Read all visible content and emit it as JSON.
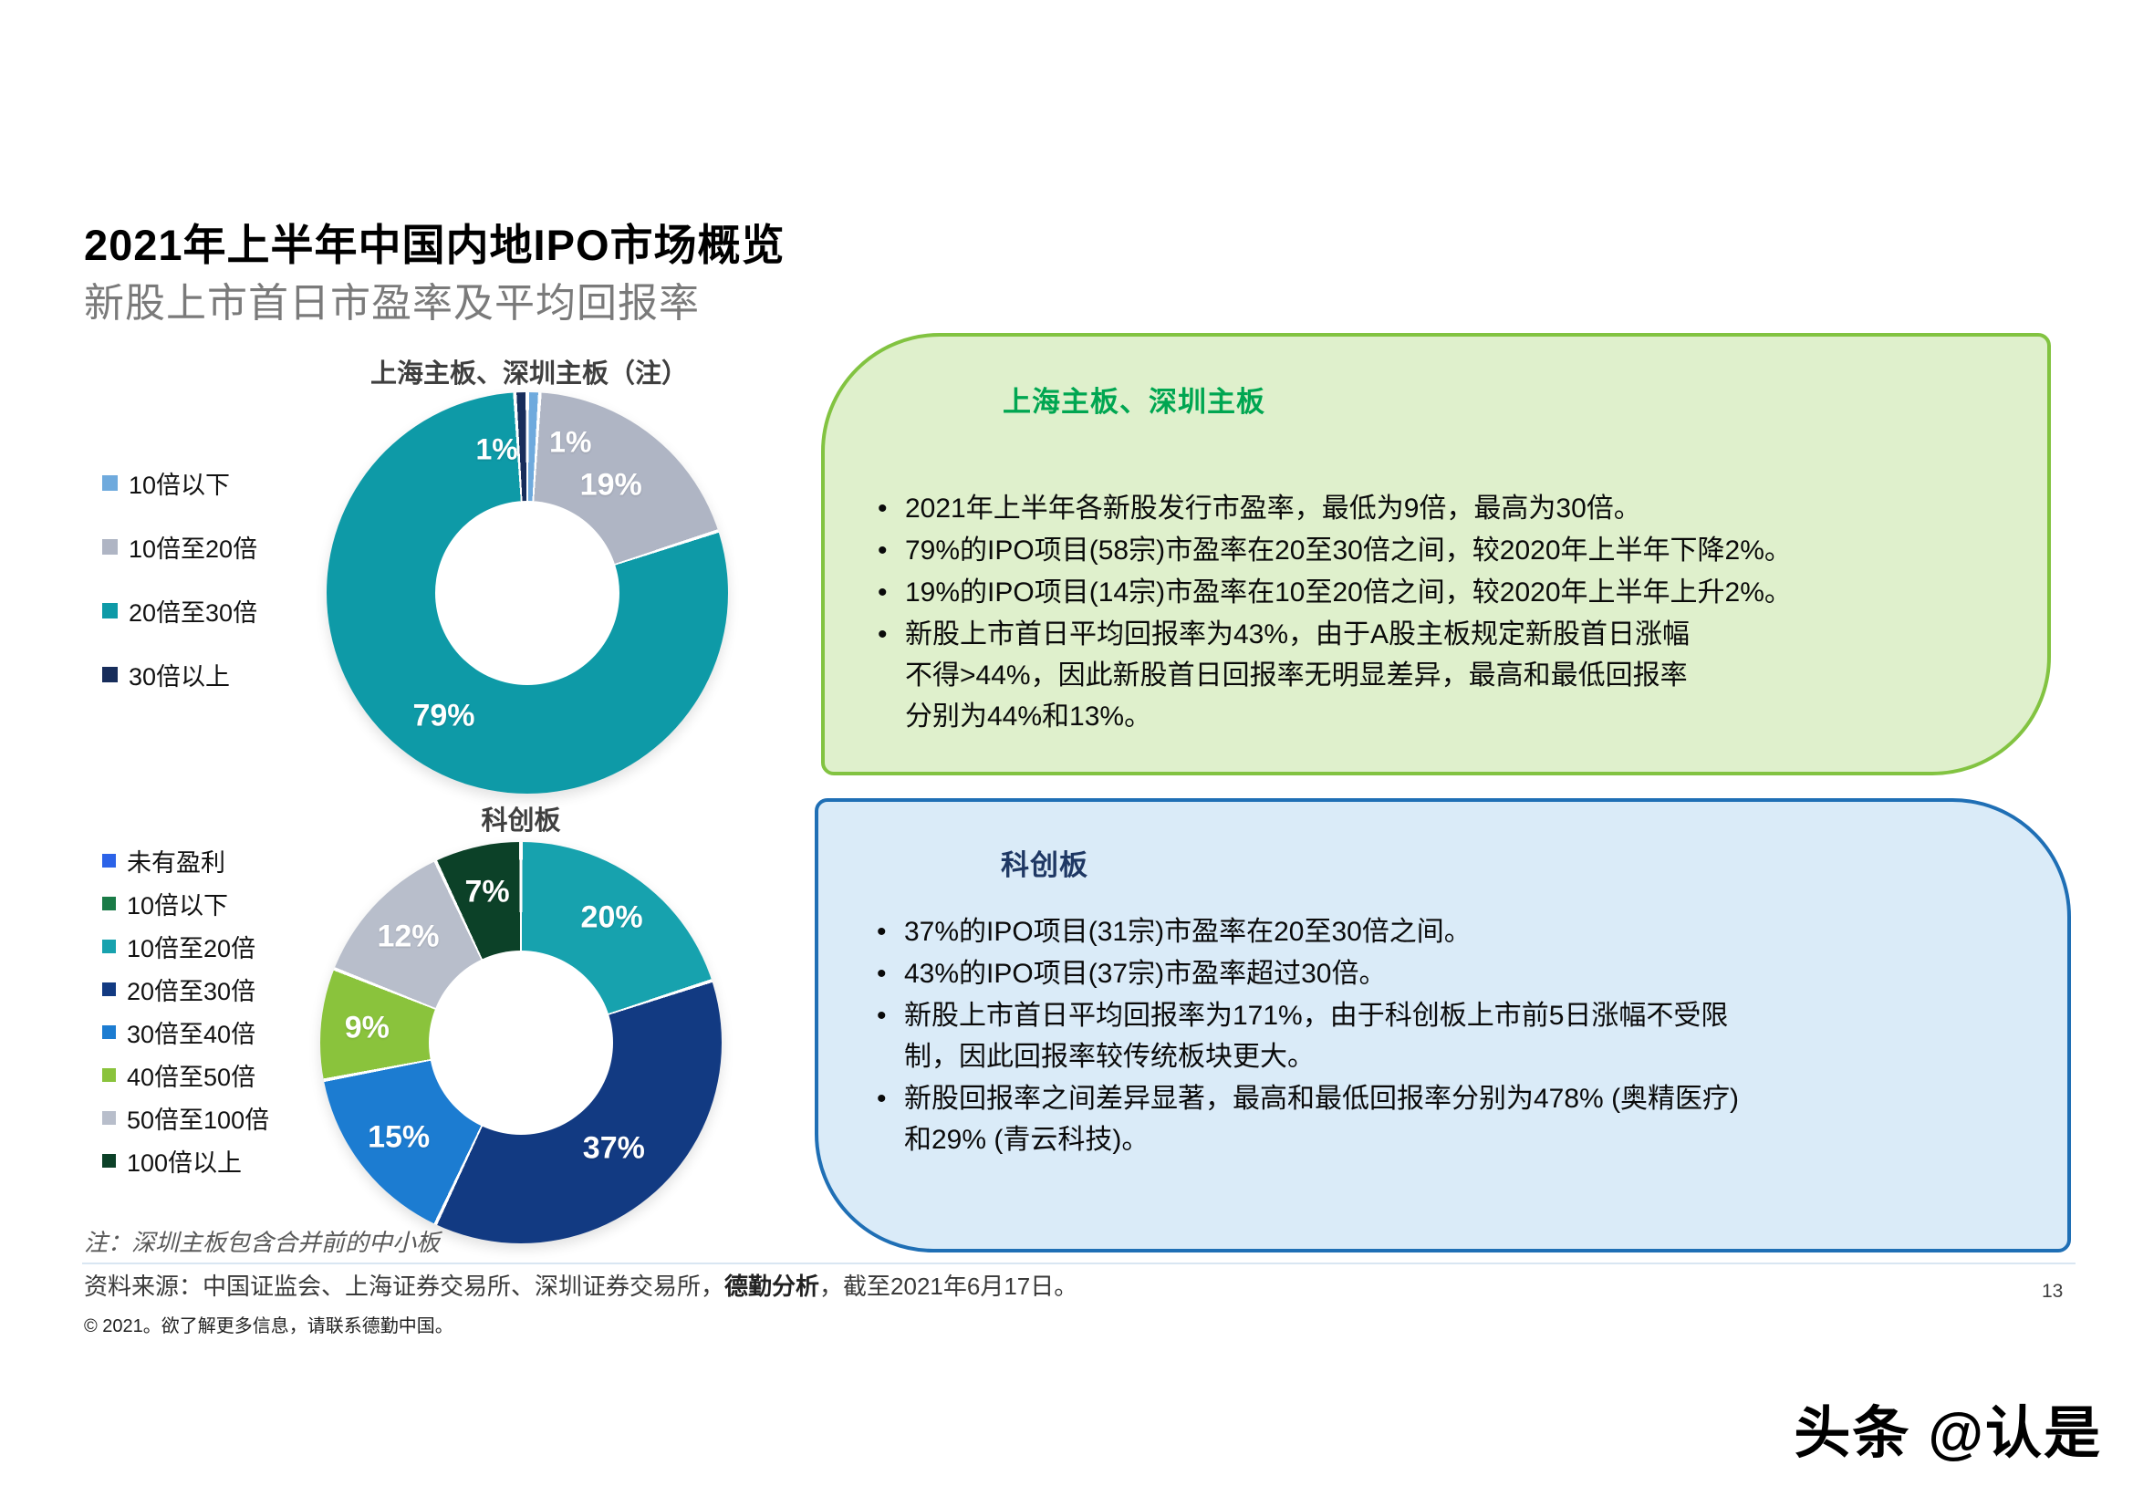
{
  "header": {
    "title": "2021年上半年中国内地IPO市场概览",
    "subtitle": "新股上市首日市盈率及平均回报率"
  },
  "chart_data": [
    {
      "type": "donut",
      "title": "上海主板、深圳主板（注）",
      "units": "%",
      "legend_position": "left",
      "start_angle": "top",
      "direction": "clockwise",
      "label_r_factor": 0.72,
      "segments": [
        {
          "label": "10倍以下",
          "value": 1,
          "color": "#6FAADD",
          "label_hint": {
            "angle_deg": 16,
            "r_factor": 0.78
          }
        },
        {
          "label": "10倍至20倍",
          "value": 19,
          "color": "#AFB5C4",
          "label_hint": {
            "r_factor": 0.68
          }
        },
        {
          "label": "20倍至30倍",
          "value": 79,
          "color": "#0E9AA7",
          "label_hint": {
            "r_factor": 0.74
          }
        },
        {
          "label": "30倍以上",
          "value": 1,
          "color": "#172D5B",
          "label_hint": {
            "angle_deg": -12,
            "r_factor": 0.73
          }
        }
      ]
    },
    {
      "type": "donut",
      "title": "科创板",
      "units": "%",
      "legend_position": "left",
      "start_angle": "top",
      "direction": "clockwise",
      "label_r_factor": 0.77,
      "segments": [
        {
          "label": "未有盈利",
          "value": 0,
          "color": "#2C63E8"
        },
        {
          "label": "10倍以下",
          "value": 0,
          "color": "#1A7B47"
        },
        {
          "label": "10倍至20倍",
          "value": 20,
          "color": "#17A2AE"
        },
        {
          "label": "20倍至30倍",
          "value": 37,
          "color": "#123A82",
          "label_hint": {
            "r_factor": 0.7
          }
        },
        {
          "label": "30倍至40倍",
          "value": 15,
          "color": "#1C7CD1"
        },
        {
          "label": "40倍至50倍",
          "value": 9,
          "color": "#8AC33C"
        },
        {
          "label": "50倍至100倍",
          "value": 12,
          "color": "#B8BECB"
        },
        {
          "label": "100倍以上",
          "value": 7,
          "color": "#0C4128"
        }
      ]
    }
  ],
  "callouts": {
    "main_board": {
      "title": "上海主板、深圳主板",
      "title_color": "#00A651",
      "border_color": "#82C341",
      "fill_color": "#DFF0CC",
      "bullets": [
        "2021年上半年各新股发行市盈率，最低为9倍，最高为30倍。",
        "79%的IPO项目(58宗)市盈率在20至30倍之间，较2020年上半年下降2%。",
        "19%的IPO项目(14宗)市盈率在10至20倍之间，较2020年上半年上升2%。",
        "新股上市首日平均回报率为43%，由于A股主板规定新股首日涨幅\n不得>44%，因此新股首日回报率无明显差异，最高和最低回报率\n分别为44%和13%。"
      ]
    },
    "star": {
      "title": "科创板",
      "title_color": "#1F3864",
      "border_color": "#1F6FB5",
      "fill_color": "#DAEBF8",
      "bullets": [
        "37%的IPO项目(31宗)市盈率在20至30倍之间。",
        "43%的IPO项目(37宗)市盈率超过30倍。",
        "新股上市首日平均回报率为171%，由于科创板上市前5日涨幅不受限\n制，因此回报率较传统板块更大。",
        "新股回报率之间差异显著，最高和最低回报率分别为478% (奥精医疗)\n和29% (青云科技)。"
      ]
    }
  },
  "footer": {
    "note": "注：深圳主板包含合并前的中小板",
    "source_prefix": "资料来源：中国证监会、上海证券交易所、深圳证券交易所，",
    "source_bold": "德勤分析",
    "source_suffix": "，截至2021年6月17日。",
    "copyright": "© 2021。欲了解更多信息，请联系德勤中国。",
    "page_number": "13"
  },
  "watermark": {
    "text": "头条 @认是"
  }
}
